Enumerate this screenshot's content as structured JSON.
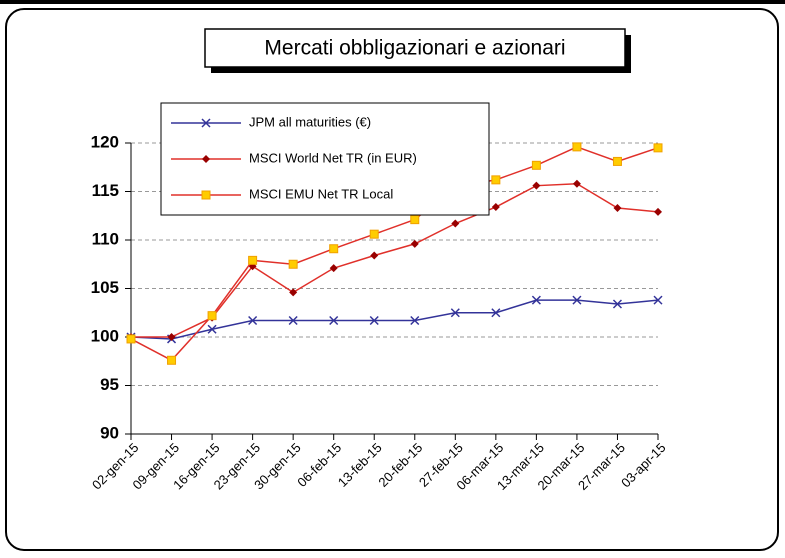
{
  "chart_data": {
    "type": "line",
    "title": "Mercati obbligazionari e azionari",
    "categories": [
      "02-gen-15",
      "09-gen-15",
      "16-gen-15",
      "23-gen-15",
      "30-gen-15",
      "06-feb-15",
      "13-feb-15",
      "20-feb-15",
      "27-feb-15",
      "06-mar-15",
      "13-mar-15",
      "20-mar-15",
      "27-mar-15",
      "03-apr-15"
    ],
    "series": [
      {
        "name": "JPM all maturities (€)",
        "color": "#333399",
        "marker": "x",
        "marker_color": "#333399",
        "values": [
          100,
          99.8,
          100.8,
          101.7,
          101.7,
          101.7,
          101.7,
          101.7,
          102.5,
          102.5,
          103.8,
          103.8,
          103.4,
          103.8
        ]
      },
      {
        "name": "MSCI World Net TR (in EUR)",
        "color": "#e0302a",
        "marker": "diamond",
        "marker_color": "#990000",
        "values": [
          100,
          100,
          102,
          107.3,
          104.6,
          107.1,
          108.4,
          109.6,
          111.7,
          113.4,
          115.6,
          115.8,
          113.3,
          112.9
        ]
      },
      {
        "name": "MSCI EMU Net TR Local",
        "color": "#e0302a",
        "marker": "square",
        "marker_color": "#ffcc00",
        "values": [
          99.8,
          97.6,
          102.2,
          107.9,
          107.5,
          109.1,
          110.6,
          112.1,
          115.5,
          116.2,
          117.7,
          119.6,
          118.1,
          119.5
        ]
      }
    ],
    "ylim": [
      90,
      120
    ],
    "yticks": [
      90,
      95,
      100,
      105,
      110,
      115,
      120
    ],
    "grid": true,
    "legend": "upper left"
  }
}
